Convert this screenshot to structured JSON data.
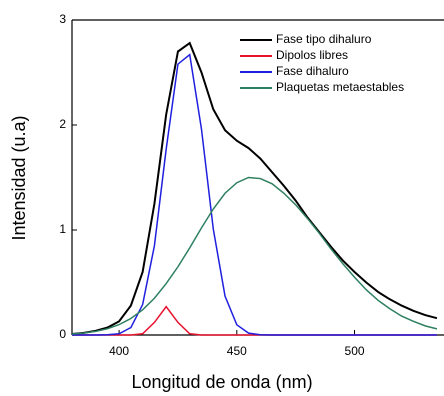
{
  "chart_data": {
    "type": "line",
    "x_label": "Longitud de onda (nm)",
    "y_label": "Intensidad (u.a)",
    "x": [
      380,
      385,
      390,
      395,
      400,
      405,
      410,
      415,
      420,
      425,
      430,
      435,
      440,
      445,
      450,
      455,
      460,
      465,
      470,
      475,
      480,
      485,
      490,
      495,
      500,
      505,
      510,
      515,
      520,
      525,
      530,
      535
    ],
    "series": [
      {
        "name": "Fase tipo dihaluro",
        "color": "#000000",
        "values": [
          0.01,
          0.02,
          0.04,
          0.07,
          0.13,
          0.28,
          0.6,
          1.25,
          2.1,
          2.7,
          2.78,
          2.5,
          2.15,
          1.95,
          1.85,
          1.78,
          1.68,
          1.55,
          1.42,
          1.28,
          1.12,
          0.98,
          0.84,
          0.71,
          0.6,
          0.5,
          0.41,
          0.34,
          0.28,
          0.23,
          0.19,
          0.16
        ]
      },
      {
        "name": "Dipolos libres",
        "color": "#e8112d",
        "values": [
          0,
          0,
          0,
          0,
          0,
          0,
          0.012,
          0.12,
          0.27,
          0.12,
          0.012,
          0,
          0,
          0,
          0,
          0,
          0,
          0,
          0,
          0,
          0,
          0,
          0,
          0,
          0,
          0,
          0,
          0,
          0,
          0,
          0,
          0
        ]
      },
      {
        "name": "Fase dihaluro",
        "color": "#1f1fe0",
        "values": [
          0,
          0,
          0,
          0.002,
          0.012,
          0.071,
          0.29,
          0.85,
          1.77,
          2.58,
          2.67,
          1.96,
          1.01,
          0.37,
          0.097,
          0.018,
          0.002,
          0,
          0,
          0,
          0,
          0,
          0,
          0,
          0,
          0,
          0,
          0,
          0,
          0,
          0,
          0
        ]
      },
      {
        "name": "Plaquetas metaestables",
        "color": "#2e8060",
        "values": [
          0.01,
          0.019,
          0.034,
          0.059,
          0.099,
          0.157,
          0.24,
          0.35,
          0.49,
          0.65,
          0.83,
          1.02,
          1.2,
          1.35,
          1.45,
          1.5,
          1.49,
          1.44,
          1.35,
          1.24,
          1.11,
          0.97,
          0.82,
          0.68,
          0.55,
          0.43,
          0.33,
          0.25,
          0.18,
          0.13,
          0.087,
          0.058
        ]
      }
    ],
    "xlim": [
      380,
      538
    ],
    "xticks": [
      400,
      450,
      500
    ],
    "ylim": [
      0,
      3
    ],
    "yticks": [
      0,
      1,
      2,
      3
    ]
  }
}
